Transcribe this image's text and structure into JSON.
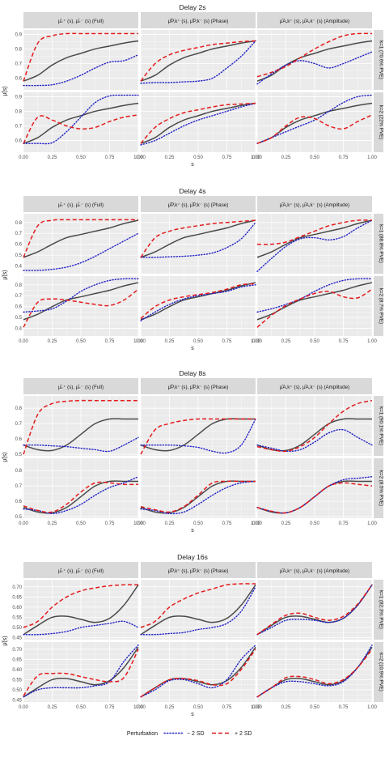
{
  "legend": {
    "title": "Perturbation",
    "items": [
      {
        "label": "− 2 SD",
        "color": "#2323c8",
        "dash": "dotted"
      },
      {
        "label": "+ 2 SD",
        "color": "#e41a1c",
        "dash": "dashed"
      }
    ]
  },
  "colors": {
    "mean": "#4a4a4a",
    "minus": "#2323c8",
    "plus": "#e41a1c",
    "strip": "#d9d9d9",
    "panel_bg": "#ebebeb"
  },
  "chart_data": [
    {
      "type": "line",
      "title": "Delay 2s",
      "xlabel": "s",
      "ylabel": "μ̃(s)",
      "col_titles": [
        "μ̂ₖ⁺ (s), μ̂ₖ⁻ (s) (Full)",
        "μ̂P,k⁺ (s), μ̂P,k⁻ (s) (Phase)",
        "μ̂A,k⁺ (s), μ̂A,k⁻ (s) (Amplitude)"
      ],
      "row_titles": [
        "k=1 (70.6% PVE)",
        "k=2 (22% PVE)"
      ],
      "x_ticks": [
        "0.00",
        "0.25",
        "0.50",
        "0.75",
        "1.00"
      ],
      "xlim": [
        0,
        1
      ],
      "ylim": [
        0.52,
        0.93
      ],
      "y_ticks": [
        0.6,
        0.7,
        0.8,
        0.9
      ],
      "y_tick_labels": [
        "0.6",
        "0.7",
        "0.8",
        "0.9"
      ],
      "x": [
        0,
        0.125,
        0.25,
        0.375,
        0.5,
        0.625,
        0.75,
        0.875,
        1
      ],
      "mean": [
        0.58,
        0.62,
        0.69,
        0.74,
        0.77,
        0.8,
        0.82,
        0.84,
        0.855
      ],
      "panels": [
        [
          {
            "minus": [
              0.55,
              0.55,
              0.555,
              0.58,
              0.62,
              0.67,
              0.71,
              0.72,
              0.76
            ],
            "plus": [
              0.58,
              0.84,
              0.89,
              0.905,
              0.905,
              0.905,
              0.905,
              0.905,
              0.905
            ]
          },
          {
            "minus": [
              0.565,
              0.57,
              0.57,
              0.575,
              0.58,
              0.6,
              0.67,
              0.75,
              0.855
            ],
            "plus": [
              0.58,
              0.7,
              0.76,
              0.79,
              0.81,
              0.83,
              0.84,
              0.85,
              0.855
            ]
          },
          {
            "minus": [
              0.56,
              0.63,
              0.69,
              0.72,
              0.7,
              0.67,
              0.7,
              0.74,
              0.78
            ],
            "plus": [
              0.61,
              0.64,
              0.68,
              0.74,
              0.8,
              0.85,
              0.89,
              0.905,
              0.905
            ]
          }
        ],
        [
          {
            "minus": [
              0.58,
              0.58,
              0.585,
              0.66,
              0.76,
              0.86,
              0.905,
              0.91,
              0.91
            ],
            "plus": [
              0.58,
              0.76,
              0.74,
              0.7,
              0.68,
              0.69,
              0.73,
              0.76,
              0.775
            ]
          },
          {
            "minus": [
              0.57,
              0.6,
              0.65,
              0.7,
              0.74,
              0.77,
              0.8,
              0.83,
              0.855
            ],
            "plus": [
              0.58,
              0.69,
              0.75,
              0.79,
              0.81,
              0.83,
              0.845,
              0.85,
              0.855
            ]
          },
          {
            "minus": [
              0.58,
              0.62,
              0.66,
              0.7,
              0.74,
              0.8,
              0.86,
              0.9,
              0.91
            ],
            "plus": [
              0.58,
              0.62,
              0.7,
              0.76,
              0.75,
              0.7,
              0.68,
              0.73,
              0.775
            ]
          }
        ]
      ]
    },
    {
      "type": "line",
      "title": "Delay 4s",
      "xlabel": "s",
      "ylabel": "μ̃(s)",
      "col_titles": [
        "μ̂ₖ⁺ (s), μ̂ₖ⁻ (s) (Full)",
        "μ̂P,k⁺ (s), μ̂P,k⁻ (s) (Phase)",
        "μ̂A,k⁺ (s), μ̂A,k⁻ (s) (Amplitude)"
      ],
      "row_titles": [
        "k=1 (88.8% PVE)",
        "k=2 (8.7% PVE)"
      ],
      "x_ticks": [
        "0.00",
        "0.25",
        "0.50",
        "0.75",
        "1.00"
      ],
      "xlim": [
        0,
        1
      ],
      "ylim": [
        0.33,
        0.88
      ],
      "y_ticks": [
        0.4,
        0.5,
        0.6,
        0.7,
        0.8
      ],
      "y_tick_labels": [
        "0.4",
        "0.5",
        "0.6",
        "0.7",
        "0.8"
      ],
      "x": [
        0,
        0.125,
        0.25,
        0.375,
        0.5,
        0.625,
        0.75,
        0.875,
        1
      ],
      "mean": [
        0.48,
        0.53,
        0.6,
        0.66,
        0.69,
        0.72,
        0.75,
        0.79,
        0.82
      ],
      "panels": [
        [
          {
            "minus": [
              0.36,
              0.36,
              0.37,
              0.39,
              0.43,
              0.49,
              0.56,
              0.63,
              0.7
            ],
            "plus": [
              0.48,
              0.77,
              0.82,
              0.825,
              0.825,
              0.825,
              0.825,
              0.825,
              0.825
            ]
          },
          {
            "minus": [
              0.48,
              0.48,
              0.485,
              0.49,
              0.5,
              0.52,
              0.57,
              0.65,
              0.8
            ],
            "plus": [
              0.48,
              0.66,
              0.72,
              0.75,
              0.77,
              0.79,
              0.8,
              0.81,
              0.82
            ]
          },
          {
            "minus": [
              0.35,
              0.47,
              0.58,
              0.65,
              0.66,
              0.64,
              0.67,
              0.75,
              0.82
            ],
            "plus": [
              0.6,
              0.6,
              0.62,
              0.67,
              0.72,
              0.77,
              0.8,
              0.82,
              0.82
            ]
          }
        ],
        [
          {
            "minus": [
              0.55,
              0.56,
              0.58,
              0.65,
              0.74,
              0.8,
              0.84,
              0.855,
              0.855
            ],
            "plus": [
              0.41,
              0.64,
              0.67,
              0.66,
              0.64,
              0.62,
              0.61,
              0.66,
              0.76
            ]
          },
          {
            "minus": [
              0.47,
              0.55,
              0.62,
              0.67,
              0.7,
              0.72,
              0.74,
              0.78,
              0.8
            ],
            "plus": [
              0.49,
              0.6,
              0.66,
              0.69,
              0.71,
              0.73,
              0.76,
              0.8,
              0.81
            ]
          },
          {
            "minus": [
              0.55,
              0.58,
              0.62,
              0.67,
              0.74,
              0.8,
              0.84,
              0.855,
              0.855
            ],
            "plus": [
              0.41,
              0.52,
              0.61,
              0.67,
              0.72,
              0.74,
              0.69,
              0.68,
              0.76
            ]
          }
        ]
      ]
    },
    {
      "type": "line",
      "title": "Delay 8s",
      "xlabel": "s",
      "ylabel": "μ̃(s)",
      "col_titles": [
        "μ̂ₖ⁺ (s), μ̂ₖ⁻ (s) (Full)",
        "μ̂P,k⁺ (s), μ̂P,k⁻ (s) (Phase)",
        "μ̂A,k⁺ (s), μ̂A,k⁻ (s) (Amplitude)"
      ],
      "row_titles": [
        "k=1 (90.1% PVE)",
        "k=2 (8.5% PVE)"
      ],
      "x_ticks": [
        "0.00",
        "0.25",
        "0.50",
        "0.75",
        "1.00"
      ],
      "xlim": [
        0,
        1
      ],
      "ylim": [
        0.49,
        0.88
      ],
      "y_ticks": [
        0.5,
        0.6,
        0.7,
        0.8
      ],
      "y_tick_labels": [
        "0.5",
        "0.6",
        "0.7",
        "0.8"
      ],
      "x": [
        0,
        0.125,
        0.25,
        0.375,
        0.5,
        0.625,
        0.75,
        0.875,
        1
      ],
      "mean": [
        0.56,
        0.53,
        0.525,
        0.56,
        0.63,
        0.7,
        0.73,
        0.73,
        0.73
      ],
      "panels": [
        [
          {
            "minus": [
              0.56,
              0.56,
              0.555,
              0.55,
              0.54,
              0.53,
              0.52,
              0.56,
              0.61
            ],
            "plus": [
              0.5,
              0.76,
              0.83,
              0.845,
              0.85,
              0.85,
              0.85,
              0.85,
              0.85
            ]
          },
          {
            "minus": [
              0.56,
              0.56,
              0.56,
              0.555,
              0.545,
              0.52,
              0.51,
              0.56,
              0.73
            ],
            "plus": [
              0.5,
              0.66,
              0.7,
              0.72,
              0.73,
              0.73,
              0.73,
              0.73,
              0.73
            ]
          },
          {
            "minus": [
              0.56,
              0.54,
              0.52,
              0.53,
              0.58,
              0.64,
              0.66,
              0.61,
              0.56
            ],
            "plus": [
              0.55,
              0.53,
              0.52,
              0.55,
              0.61,
              0.7,
              0.78,
              0.83,
              0.85
            ]
          }
        ],
        [
          {
            "minus": [
              0.55,
              0.54,
              0.52,
              0.54,
              0.58,
              0.64,
              0.69,
              0.72,
              0.76
            ],
            "plus": [
              0.57,
              0.54,
              0.53,
              0.58,
              0.66,
              0.72,
              0.72,
              0.71,
              0.71
            ]
          },
          {
            "minus": [
              0.55,
              0.54,
              0.52,
              0.53,
              0.58,
              0.64,
              0.69,
              0.72,
              0.73
            ],
            "plus": [
              0.565,
              0.545,
              0.53,
              0.565,
              0.64,
              0.72,
              0.73,
              0.73,
              0.73
            ]
          },
          {
            "minus": [
              0.56,
              0.535,
              0.525,
              0.56,
              0.63,
              0.7,
              0.74,
              0.75,
              0.76
            ],
            "plus": [
              0.56,
              0.535,
              0.525,
              0.56,
              0.63,
              0.7,
              0.72,
              0.71,
              0.7
            ]
          }
        ]
      ]
    },
    {
      "type": "line",
      "title": "Delay 16s",
      "xlabel": "s",
      "ylabel": "μ̃(s)",
      "col_titles": [
        "μ̂ₖ⁺ (s), μ̂ₖ⁻ (s) (Full)",
        "μ̂P,k⁺ (s), μ̂P,k⁻ (s) (Phase)",
        "μ̂A,k⁺ (s), μ̂A,k⁻ (s) (Amplitude)"
      ],
      "row_titles": [
        "k=1 (82.3% PVE)",
        "k=2 (10.9% PVE)"
      ],
      "x_ticks": [
        "0.00",
        "0.25",
        "0.50",
        "0.75",
        "1.00"
      ],
      "xlim": [
        0,
        1
      ],
      "ylim": [
        0.44,
        0.735
      ],
      "y_ticks": [
        0.45,
        0.5,
        0.55,
        0.6,
        0.65,
        0.7
      ],
      "y_tick_labels": [
        "0.45",
        "0.50",
        "0.55",
        "0.60",
        "0.65",
        "0.70"
      ],
      "x": [
        0,
        0.125,
        0.25,
        0.375,
        0.5,
        0.625,
        0.75,
        0.875,
        1
      ],
      "mean": [
        0.465,
        0.51,
        0.55,
        0.555,
        0.54,
        0.525,
        0.545,
        0.61,
        0.71
      ],
      "panels": [
        [
          {
            "minus": [
              0.465,
              0.465,
              0.47,
              0.48,
              0.5,
              0.51,
              0.52,
              0.53,
              0.5
            ],
            "plus": [
              0.5,
              0.53,
              0.6,
              0.65,
              0.68,
              0.695,
              0.705,
              0.71,
              0.71
            ]
          },
          {
            "minus": [
              0.465,
              0.465,
              0.47,
              0.475,
              0.49,
              0.5,
              0.52,
              0.58,
              0.7
            ],
            "plus": [
              0.5,
              0.53,
              0.6,
              0.64,
              0.67,
              0.69,
              0.71,
              0.715,
              0.715
            ]
          },
          {
            "minus": [
              0.465,
              0.5,
              0.535,
              0.54,
              0.535,
              0.525,
              0.545,
              0.61,
              0.71
            ],
            "plus": [
              0.465,
              0.515,
              0.56,
              0.57,
              0.55,
              0.535,
              0.555,
              0.615,
              0.71
            ]
          }
        ],
        [
          {
            "minus": [
              0.465,
              0.5,
              0.51,
              0.51,
              0.51,
              0.52,
              0.54,
              0.64,
              0.72
            ],
            "plus": [
              0.47,
              0.57,
              0.58,
              0.58,
              0.565,
              0.55,
              0.54,
              0.56,
              0.7
            ]
          },
          {
            "minus": [
              0.465,
              0.5,
              0.545,
              0.55,
              0.53,
              0.51,
              0.55,
              0.65,
              0.72
            ],
            "plus": [
              0.465,
              0.51,
              0.55,
              0.555,
              0.545,
              0.525,
              0.53,
              0.6,
              0.7
            ]
          },
          {
            "minus": [
              0.465,
              0.51,
              0.54,
              0.54,
              0.53,
              0.52,
              0.54,
              0.61,
              0.72
            ],
            "plus": [
              0.465,
              0.51,
              0.56,
              0.565,
              0.55,
              0.53,
              0.55,
              0.61,
              0.7
            ]
          }
        ]
      ]
    }
  ]
}
